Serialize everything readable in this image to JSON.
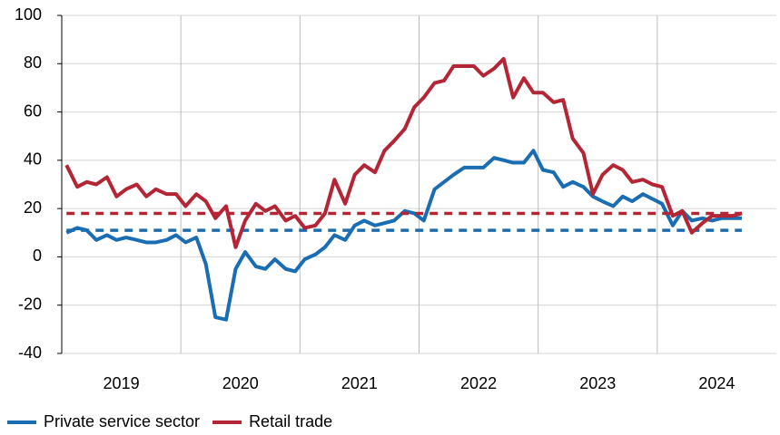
{
  "chart_data": {
    "type": "line",
    "x": [
      2019.04,
      2019.13,
      2019.21,
      2019.29,
      2019.38,
      2019.46,
      2019.54,
      2019.63,
      2019.71,
      2019.79,
      2019.88,
      2019.96,
      2020.04,
      2020.13,
      2020.21,
      2020.29,
      2020.38,
      2020.46,
      2020.54,
      2020.63,
      2020.71,
      2020.79,
      2020.88,
      2020.96,
      2021.04,
      2021.13,
      2021.21,
      2021.29,
      2021.38,
      2021.46,
      2021.54,
      2021.63,
      2021.71,
      2021.79,
      2021.88,
      2021.96,
      2022.04,
      2022.13,
      2022.21,
      2022.29,
      2022.38,
      2022.46,
      2022.54,
      2022.63,
      2022.71,
      2022.79,
      2022.88,
      2022.96,
      2023.04,
      2023.13,
      2023.21,
      2023.29,
      2023.38,
      2023.46,
      2023.54,
      2023.63,
      2023.71,
      2023.79,
      2023.88,
      2023.96,
      2024.04,
      2024.13,
      2024.21,
      2024.29,
      2024.38,
      2024.46,
      2024.54,
      2024.63,
      2024.71
    ],
    "series": [
      {
        "name": "Private service sector",
        "color": "#1a6db3",
        "average": 11,
        "values": [
          10,
          12,
          11,
          7,
          9,
          7,
          8,
          7,
          6,
          6,
          7,
          9,
          6,
          8,
          -3,
          -25,
          -26,
          -5,
          2,
          -4,
          -5,
          -1,
          -5,
          -6,
          -1,
          1,
          4,
          9,
          7,
          13,
          15,
          13,
          14,
          15,
          19,
          18,
          15,
          28,
          31,
          34,
          37,
          37,
          37,
          41,
          40,
          39,
          39,
          44,
          36,
          35,
          29,
          31,
          29,
          25,
          23,
          21,
          25,
          23,
          26,
          24,
          22,
          13,
          19,
          15,
          16,
          15,
          16,
          16,
          16
        ]
      },
      {
        "name": "Retail trade",
        "color": "#b42535",
        "average": 18,
        "values": [
          38,
          29,
          31,
          30,
          33,
          25,
          28,
          30,
          25,
          28,
          26,
          26,
          21,
          26,
          23,
          16,
          21,
          4,
          15,
          22,
          19,
          21,
          15,
          17,
          12,
          13,
          18,
          32,
          22,
          34,
          38,
          35,
          44,
          48,
          53,
          62,
          66,
          72,
          73,
          79,
          79,
          79,
          75,
          78,
          82,
          66,
          74,
          68,
          68,
          64,
          65,
          49,
          43,
          26,
          34,
          38,
          36,
          31,
          32,
          30,
          29,
          17,
          19,
          10,
          14,
          17,
          17,
          17,
          18
        ]
      }
    ],
    "xlim": [
      2019,
      2025
    ],
    "xticks": [
      {
        "value": 2019.5,
        "label": "2019"
      },
      {
        "value": 2020.5,
        "label": "2020"
      },
      {
        "value": 2021.5,
        "label": "2021"
      },
      {
        "value": 2022.5,
        "label": "2022"
      },
      {
        "value": 2023.5,
        "label": "2023"
      },
      {
        "value": 2024.5,
        "label": "2024"
      }
    ],
    "xgrid": [
      2020,
      2021,
      2022,
      2023,
      2024
    ],
    "ylim": [
      -40,
      100
    ],
    "yticks": [
      -40,
      -20,
      0,
      20,
      40,
      60,
      80,
      100
    ],
    "grid": true,
    "legend": "bottom-left"
  }
}
